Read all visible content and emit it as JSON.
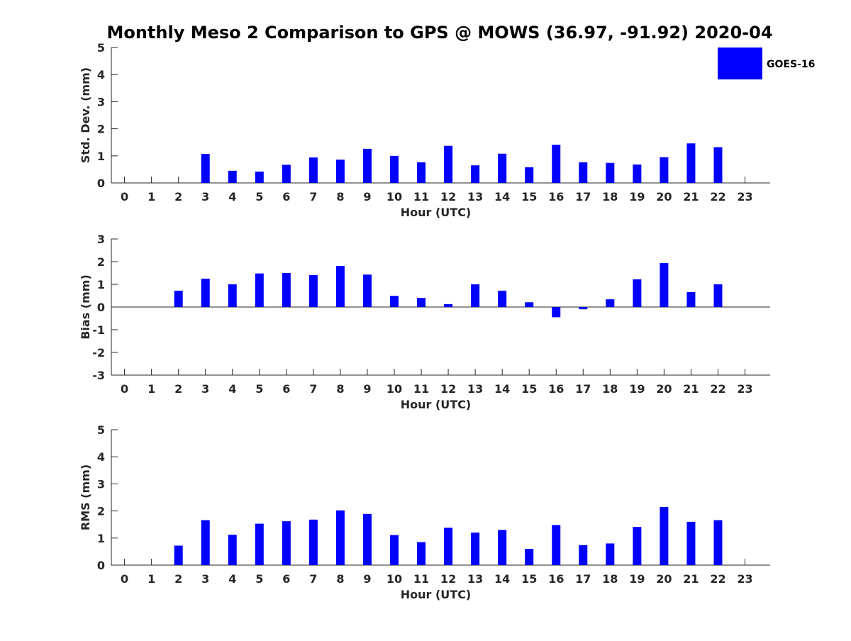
{
  "colors": {
    "bar": "#0000ff",
    "axis": "#262626",
    "background": "#ffffff"
  },
  "figure": {
    "title": "Monthly Meso 2 Comparison to GPS @ MOWS (36.97, -91.92) 2020-04"
  },
  "legend": {
    "label": "GOES-16",
    "placement": "top-right"
  },
  "chart_data": [
    {
      "type": "bar",
      "title": "",
      "xlabel": "Hour (UTC)",
      "ylabel": "Std. Dev. (mm)",
      "ylim": [
        0,
        5
      ],
      "yticks": [
        "0",
        "1",
        "2",
        "3",
        "4",
        "5"
      ],
      "categories": [
        "0",
        "1",
        "2",
        "3",
        "4",
        "5",
        "6",
        "7",
        "8",
        "9",
        "10",
        "11",
        "12",
        "13",
        "14",
        "15",
        "16",
        "17",
        "18",
        "19",
        "20",
        "21",
        "22",
        "23"
      ],
      "series": [
        {
          "name": "GOES-16",
          "values": [
            null,
            null,
            null,
            1.07,
            0.45,
            0.42,
            0.67,
            0.94,
            0.86,
            1.26,
            1.0,
            0.76,
            1.37,
            0.65,
            1.08,
            0.58,
            1.41,
            0.76,
            0.74,
            0.68,
            0.95,
            1.46,
            1.32,
            null
          ]
        }
      ]
    },
    {
      "type": "bar",
      "title": "",
      "xlabel": "Hour (UTC)",
      "ylabel": "Bias (mm)",
      "ylim": [
        -3,
        3
      ],
      "yticks": [
        "-3",
        "-2",
        "-1",
        "0",
        "1",
        "2",
        "3"
      ],
      "categories": [
        "0",
        "1",
        "2",
        "3",
        "4",
        "5",
        "6",
        "7",
        "8",
        "9",
        "10",
        "11",
        "12",
        "13",
        "14",
        "15",
        "16",
        "17",
        "18",
        "19",
        "20",
        "21",
        "22",
        "23"
      ],
      "series": [
        {
          "name": "GOES-16",
          "values": [
            null,
            null,
            0.72,
            1.25,
            1.0,
            1.48,
            1.5,
            1.41,
            1.81,
            1.43,
            0.49,
            0.4,
            0.13,
            1.0,
            0.72,
            0.21,
            -0.45,
            -0.1,
            0.34,
            1.22,
            1.94,
            0.66,
            1.0,
            null
          ]
        }
      ]
    },
    {
      "type": "bar",
      "title": "",
      "xlabel": "Hour (UTC)",
      "ylabel": "RMS (mm)",
      "ylim": [
        0,
        5
      ],
      "yticks": [
        "0",
        "1",
        "2",
        "3",
        "4",
        "5"
      ],
      "categories": [
        "0",
        "1",
        "2",
        "3",
        "4",
        "5",
        "6",
        "7",
        "8",
        "9",
        "10",
        "11",
        "12",
        "13",
        "14",
        "15",
        "16",
        "17",
        "18",
        "19",
        "20",
        "21",
        "22",
        "23"
      ],
      "series": [
        {
          "name": "GOES-16",
          "values": [
            null,
            null,
            0.72,
            1.66,
            1.12,
            1.53,
            1.62,
            1.68,
            2.02,
            1.89,
            1.11,
            0.85,
            1.38,
            1.2,
            1.3,
            0.6,
            1.48,
            0.74,
            0.8,
            1.41,
            2.15,
            1.6,
            1.66,
            null
          ]
        }
      ]
    }
  ]
}
